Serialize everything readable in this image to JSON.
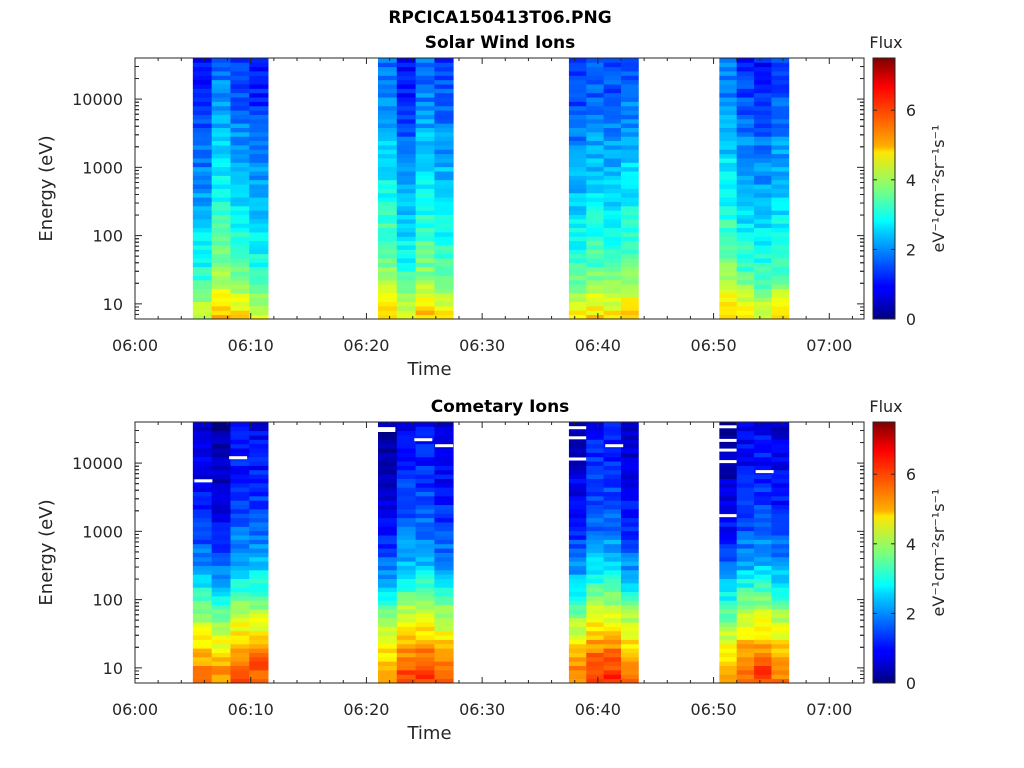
{
  "figure": {
    "title": "RPCICA150413T06.PNG"
  },
  "colors": {
    "axis": "#262626",
    "background": "#ffffff",
    "colormap": "jet",
    "missing_data": "#ffffff"
  },
  "chart_data": [
    {
      "type": "heatmap",
      "title": "Solar Wind Ions",
      "xlabel": "Time",
      "ylabel": "Energy (eV)",
      "x_ticks": [
        "06:00",
        "06:10",
        "06:20",
        "06:30",
        "06:40",
        "06:50",
        "07:00"
      ],
      "x_range_minutes": [
        0,
        63
      ],
      "y_scale": "log",
      "y_ticks": [
        "10",
        "100",
        "1000",
        "10000"
      ],
      "y_range_eV": [
        6,
        40000
      ],
      "colorbar": {
        "label": "Flux",
        "units": "eV⁻¹cm⁻²sr⁻¹s⁻¹",
        "range": [
          0,
          7.5
        ],
        "ticks": [
          "0",
          "2",
          "4",
          "6"
        ]
      },
      "scan_blocks_minutes": [
        [
          5,
          11.5
        ],
        [
          21,
          27.5
        ],
        [
          37.5,
          43.5
        ],
        [
          50.5,
          56.5
        ]
      ],
      "columns_per_block": 4,
      "flux_profile": {
        "log_energy_eV": [
          0.78,
          1.0,
          1.3,
          1.6,
          2.0,
          2.5,
          3.0,
          3.5,
          4.0,
          4.6
        ],
        "flux": [
          4.9,
          4.5,
          3.8,
          3.3,
          3.0,
          2.6,
          2.3,
          2.0,
          1.6,
          1.4
        ]
      }
    },
    {
      "type": "heatmap",
      "title": "Cometary Ions",
      "xlabel": "Time",
      "ylabel": "Energy (eV)",
      "x_ticks": [
        "06:00",
        "06:10",
        "06:20",
        "06:30",
        "06:40",
        "06:50",
        "07:00"
      ],
      "x_range_minutes": [
        0,
        63
      ],
      "y_scale": "log",
      "y_ticks": [
        "10",
        "100",
        "1000",
        "10000"
      ],
      "y_range_eV": [
        6,
        40000
      ],
      "colorbar": {
        "label": "Flux",
        "units": "eV⁻¹cm⁻²sr⁻¹s⁻¹",
        "range": [
          0,
          7.5
        ],
        "ticks": [
          "0",
          "2",
          "4",
          "6"
        ]
      },
      "scan_blocks_minutes": [
        [
          5,
          11.5
        ],
        [
          21,
          27.5
        ],
        [
          37.5,
          43.5
        ],
        [
          50.5,
          56.5
        ]
      ],
      "columns_per_block": 4,
      "flux_profile": {
        "log_energy_eV": [
          0.78,
          1.0,
          1.2,
          1.5,
          1.8,
          2.1,
          2.5,
          3.0,
          3.5,
          4.0,
          4.6
        ],
        "flux": [
          5.8,
          5.7,
          5.3,
          4.6,
          4.0,
          3.1,
          2.1,
          1.4,
          1.1,
          0.8,
          0.6
        ]
      },
      "missing_marks": [
        {
          "time_min": 6.0,
          "energy_eV": 5500
        },
        {
          "time_min": 9.0,
          "energy_eV": 12000
        },
        {
          "time_min": 21.8,
          "energy_eV": 30000
        },
        {
          "time_min": 21.8,
          "energy_eV": 32000
        },
        {
          "time_min": 25.0,
          "energy_eV": 22000
        },
        {
          "time_min": 26.8,
          "energy_eV": 18000
        },
        {
          "time_min": 38.3,
          "energy_eV": 33000
        },
        {
          "time_min": 38.3,
          "energy_eV": 23500
        },
        {
          "time_min": 38.3,
          "energy_eV": 11500
        },
        {
          "time_min": 41.5,
          "energy_eV": 18000
        },
        {
          "time_min": 51.3,
          "energy_eV": 34000
        },
        {
          "time_min": 51.3,
          "energy_eV": 21500
        },
        {
          "time_min": 51.3,
          "energy_eV": 15500
        },
        {
          "time_min": 51.3,
          "energy_eV": 10500
        },
        {
          "time_min": 51.3,
          "energy_eV": 1700
        },
        {
          "time_min": 54.5,
          "energy_eV": 7500
        }
      ]
    }
  ]
}
